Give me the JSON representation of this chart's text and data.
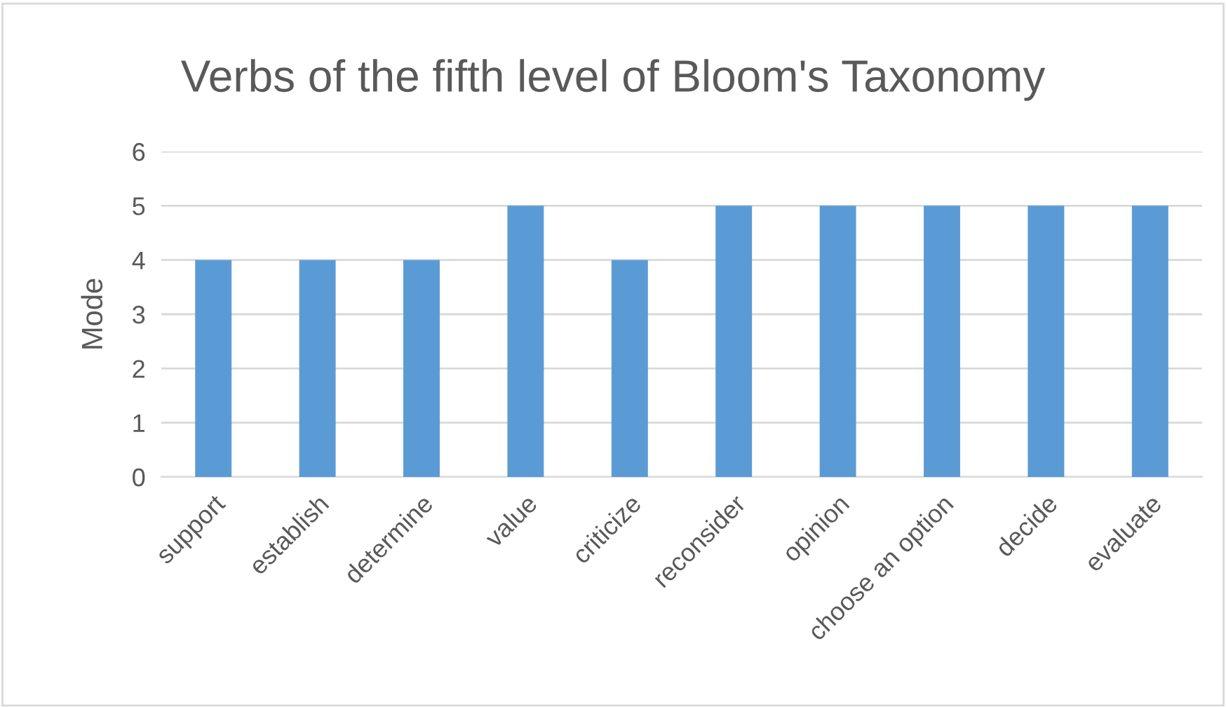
{
  "chart_data": {
    "type": "bar",
    "title": "Verbs of the fifth level of Bloom's Taxonomy",
    "ylabel": "Mode",
    "categories": [
      "support",
      "establish",
      "determine",
      "value",
      "criticize",
      "reconsider",
      "opinion",
      "choose an option",
      "decide",
      "evaluate"
    ],
    "values": [
      4,
      4,
      4,
      5,
      4,
      5,
      5,
      5,
      5,
      5
    ],
    "color": "#5b9bd5",
    "ylim": [
      0,
      6
    ],
    "yticks": [
      0,
      1,
      2,
      3,
      4,
      5,
      6
    ],
    "grid": "y",
    "legend": false
  }
}
